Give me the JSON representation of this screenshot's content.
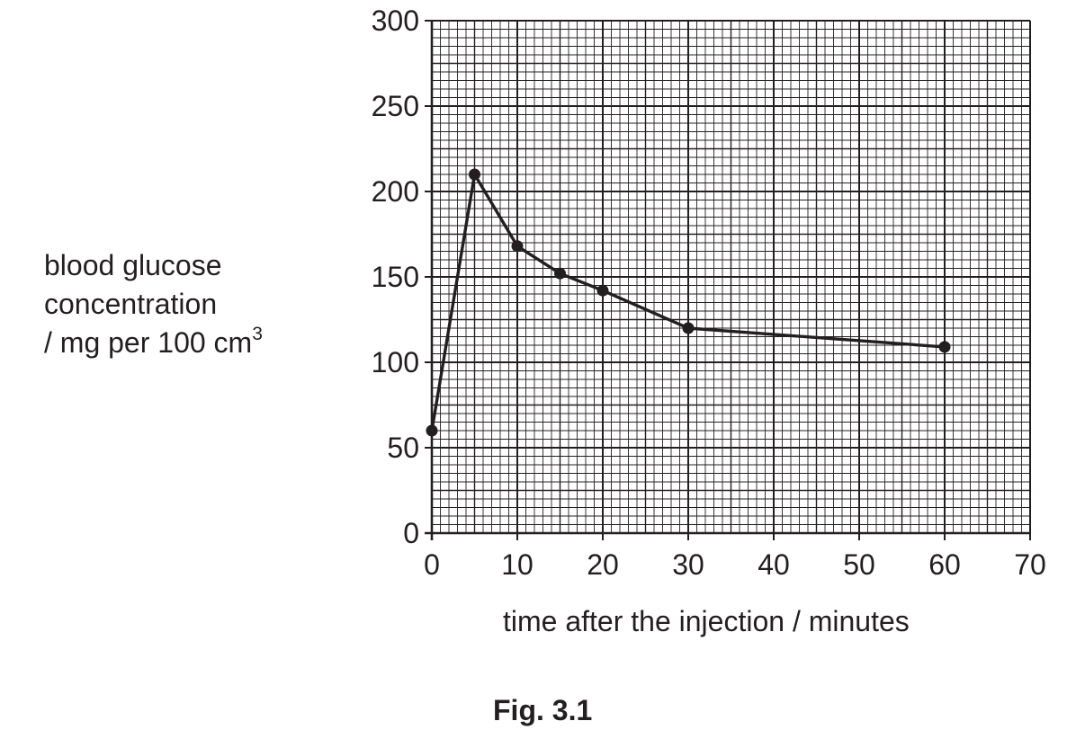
{
  "chart_data": {
    "type": "line",
    "x": [
      0,
      5,
      10,
      15,
      20,
      30,
      60
    ],
    "y": [
      60,
      210,
      168,
      152,
      142,
      120,
      109
    ],
    "xlabel": "time after the injection / minutes",
    "ylabel_lines": [
      "blood glucose",
      "concentration",
      "/ mg per 100 cm"
    ],
    "ylabel_superscript": "3",
    "xlim": [
      0,
      70
    ],
    "ylim": [
      0,
      300
    ],
    "x_ticks": [
      "0",
      "10",
      "20",
      "30",
      "40",
      "50",
      "60",
      "70"
    ],
    "y_ticks": [
      "0",
      "50",
      "100",
      "150",
      "200",
      "250",
      "300"
    ],
    "grid": true,
    "legend": "none",
    "caption": "Fig. 3.1"
  }
}
